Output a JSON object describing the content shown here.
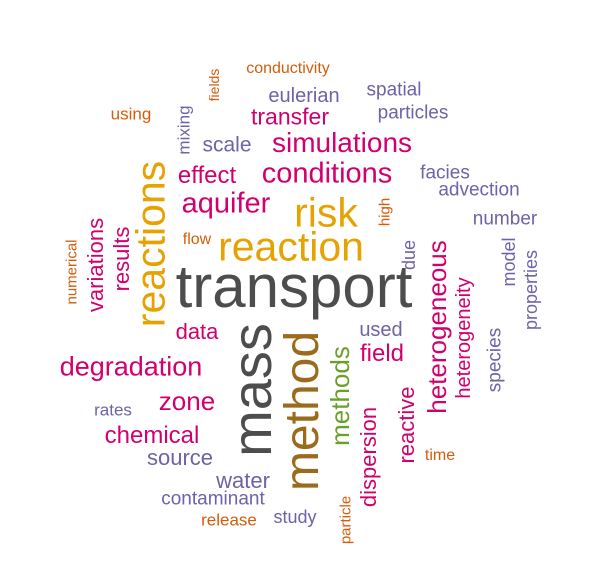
{
  "palette": {
    "grey": "#4d4d4d",
    "gold": "#e6a200",
    "brown": "#9a6b1a",
    "green": "#6aa02a",
    "magenta": "#d1006e",
    "purple": "#6c63a8",
    "orange": "#d45d0c"
  },
  "words": [
    {
      "text": "transport",
      "color": "grey"
    },
    {
      "text": "mass",
      "color": "grey"
    },
    {
      "text": "method",
      "color": "brown"
    },
    {
      "text": "reaction",
      "color": "gold"
    },
    {
      "text": "reactions",
      "color": "gold"
    },
    {
      "text": "risk",
      "color": "gold"
    },
    {
      "text": "methods",
      "color": "green"
    },
    {
      "text": "conditions",
      "color": "magenta"
    },
    {
      "text": "simulations",
      "color": "magenta"
    },
    {
      "text": "aquifer",
      "color": "magenta"
    },
    {
      "text": "degradation",
      "color": "magenta"
    },
    {
      "text": "heterogeneous",
      "color": "magenta"
    },
    {
      "text": "transfer",
      "color": "magenta"
    },
    {
      "text": "effect",
      "color": "magenta"
    },
    {
      "text": "zone",
      "color": "magenta"
    },
    {
      "text": "chemical",
      "color": "magenta"
    },
    {
      "text": "field",
      "color": "magenta"
    },
    {
      "text": "dispersion",
      "color": "magenta"
    },
    {
      "text": "reactive",
      "color": "magenta"
    },
    {
      "text": "heterogeneity",
      "color": "magenta"
    },
    {
      "text": "variations",
      "color": "magenta"
    },
    {
      "text": "results",
      "color": "magenta"
    },
    {
      "text": "data",
      "color": "magenta"
    },
    {
      "text": "eulerian",
      "color": "purple"
    },
    {
      "text": "spatial",
      "color": "purple"
    },
    {
      "text": "particles",
      "color": "purple"
    },
    {
      "text": "scale",
      "color": "purple"
    },
    {
      "text": "mixing",
      "color": "purple"
    },
    {
      "text": "facies",
      "color": "purple"
    },
    {
      "text": "advection",
      "color": "purple"
    },
    {
      "text": "number",
      "color": "purple"
    },
    {
      "text": "model",
      "color": "purple"
    },
    {
      "text": "properties",
      "color": "purple"
    },
    {
      "text": "species",
      "color": "purple"
    },
    {
      "text": "used",
      "color": "purple"
    },
    {
      "text": "due",
      "color": "purple"
    },
    {
      "text": "rates",
      "color": "purple"
    },
    {
      "text": "source",
      "color": "purple"
    },
    {
      "text": "water",
      "color": "purple"
    },
    {
      "text": "contaminant",
      "color": "purple"
    },
    {
      "text": "study",
      "color": "purple"
    },
    {
      "text": "conductivity",
      "color": "orange"
    },
    {
      "text": "fields",
      "color": "orange"
    },
    {
      "text": "using",
      "color": "orange"
    },
    {
      "text": "flow",
      "color": "orange"
    },
    {
      "text": "high",
      "color": "orange"
    },
    {
      "text": "numerical",
      "color": "orange"
    },
    {
      "text": "time",
      "color": "orange"
    },
    {
      "text": "release",
      "color": "orange"
    },
    {
      "text": "particle",
      "color": "orange"
    }
  ]
}
